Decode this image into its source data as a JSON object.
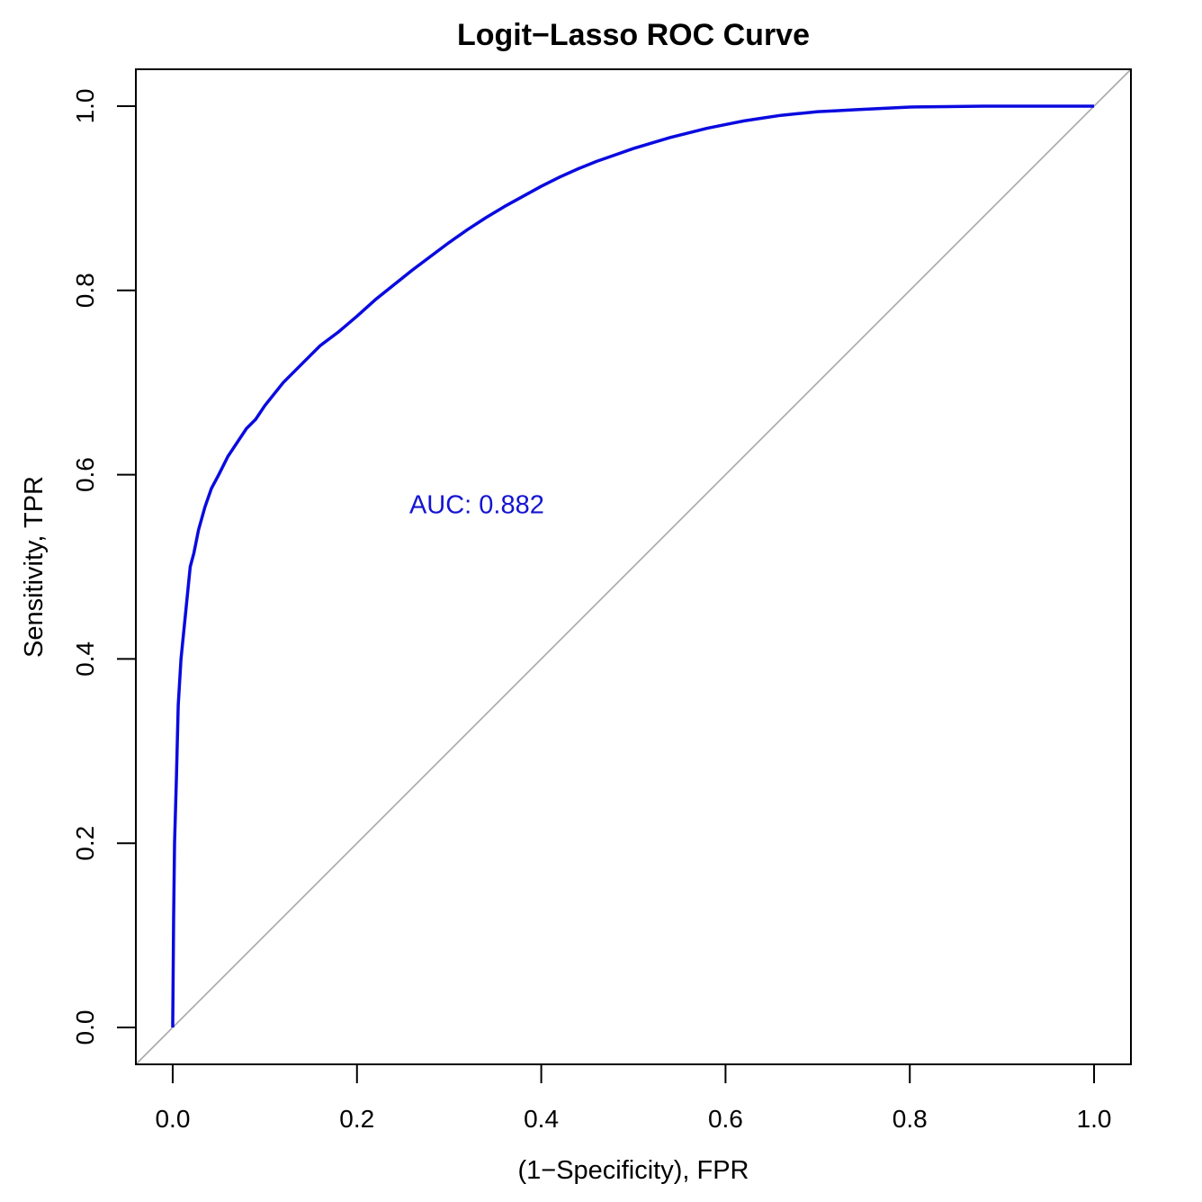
{
  "chart_data": {
    "type": "line",
    "title": "Logit−Lasso ROC Curve",
    "xlabel": "(1−Specificity), FPR",
    "ylabel": "Sensitivity, TPR",
    "xlim": [
      -0.04,
      1.04
    ],
    "ylim": [
      -0.04,
      1.04
    ],
    "x_ticks": [
      0.0,
      0.2,
      0.4,
      0.6,
      0.8,
      1.0
    ],
    "x_tick_labels": [
      "0.0",
      "0.2",
      "0.4",
      "0.6",
      "0.8",
      "1.0"
    ],
    "y_ticks": [
      0.0,
      0.2,
      0.4,
      0.6,
      0.8,
      1.0
    ],
    "y_tick_labels": [
      "0.0",
      "0.2",
      "0.4",
      "0.6",
      "0.8",
      "1.0"
    ],
    "grid": false,
    "annotation": {
      "text": "AUC: 0.882",
      "x": 0.33,
      "y": 0.568,
      "color": "#1414d2"
    },
    "reference_line": {
      "x": [
        -0.04,
        1.04
      ],
      "y": [
        -0.04,
        1.04
      ],
      "color": "#a8a8a8"
    },
    "series": [
      {
        "color": "#0a0ae0",
        "x": [
          0.0,
          0.001,
          0.002,
          0.004,
          0.006,
          0.009,
          0.012,
          0.015,
          0.019,
          0.023,
          0.028,
          0.035,
          0.042,
          0.05,
          0.06,
          0.07,
          0.08,
          0.09,
          0.1,
          0.12,
          0.14,
          0.16,
          0.18,
          0.2,
          0.22,
          0.24,
          0.26,
          0.28,
          0.3,
          0.32,
          0.34,
          0.36,
          0.38,
          0.4,
          0.42,
          0.44,
          0.46,
          0.48,
          0.5,
          0.52,
          0.54,
          0.56,
          0.58,
          0.6,
          0.62,
          0.64,
          0.66,
          0.68,
          0.7,
          0.72,
          0.74,
          0.76,
          0.78,
          0.8,
          0.84,
          0.88,
          0.92,
          0.96,
          1.0
        ],
        "y": [
          0.0,
          0.12,
          0.2,
          0.27,
          0.35,
          0.4,
          0.43,
          0.46,
          0.5,
          0.515,
          0.54,
          0.565,
          0.585,
          0.6,
          0.62,
          0.635,
          0.65,
          0.66,
          0.675,
          0.7,
          0.72,
          0.74,
          0.755,
          0.772,
          0.79,
          0.806,
          0.822,
          0.837,
          0.852,
          0.866,
          0.879,
          0.891,
          0.902,
          0.913,
          0.923,
          0.932,
          0.94,
          0.947,
          0.954,
          0.96,
          0.966,
          0.971,
          0.976,
          0.98,
          0.984,
          0.987,
          0.99,
          0.992,
          0.994,
          0.995,
          0.996,
          0.997,
          0.998,
          0.999,
          0.9995,
          1.0,
          1.0,
          1.0,
          1.0
        ]
      }
    ]
  }
}
